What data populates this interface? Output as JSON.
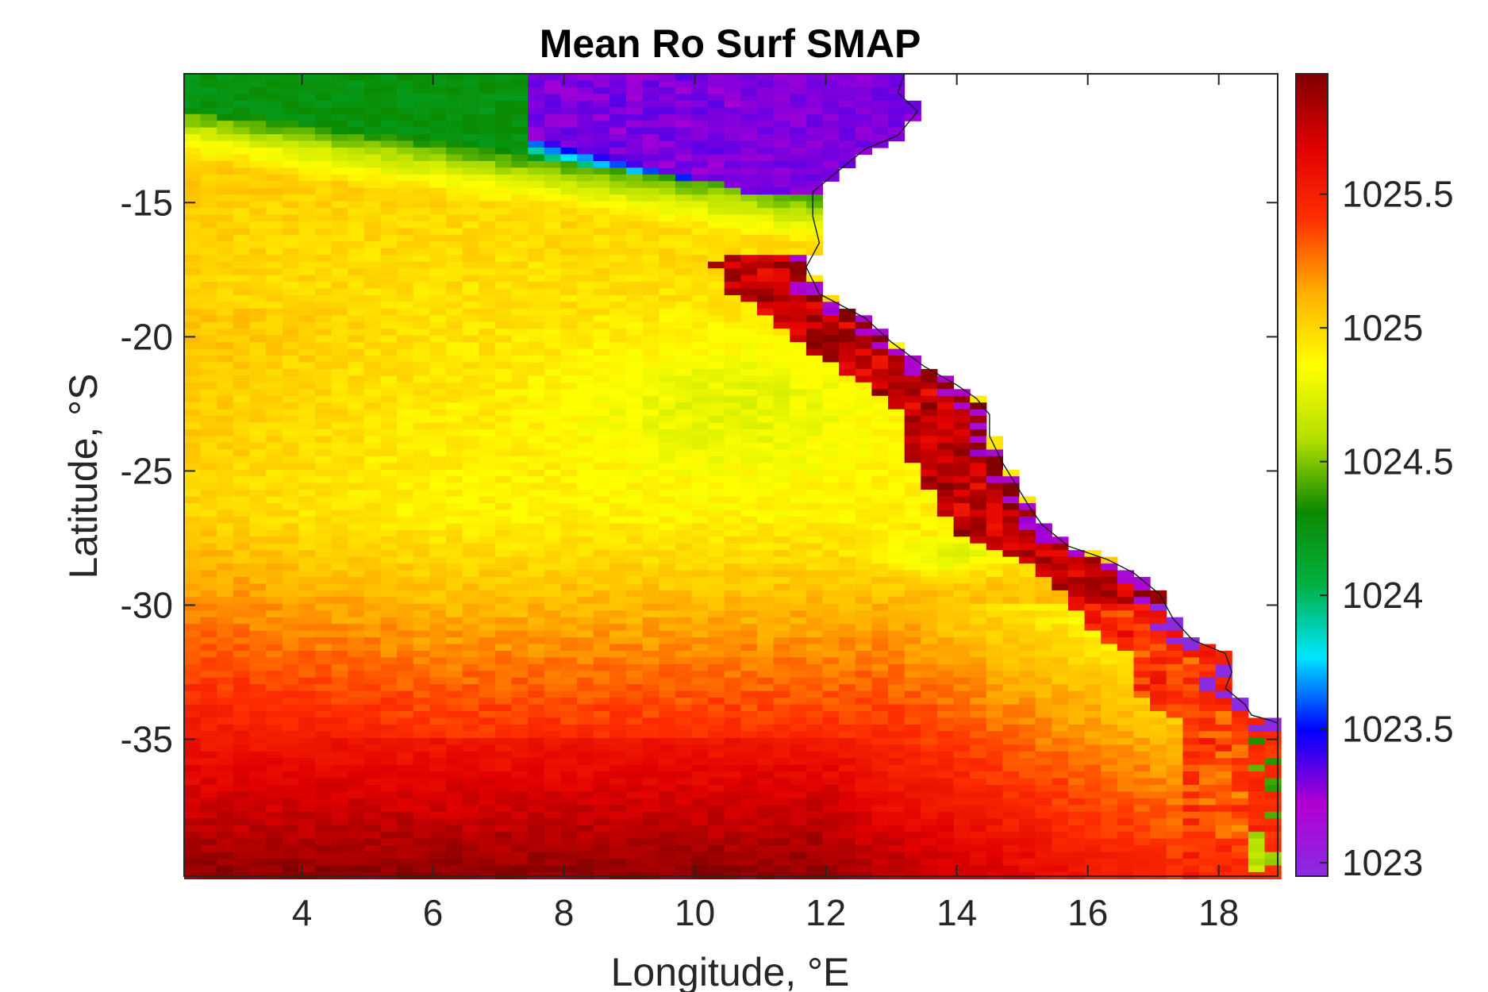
{
  "chart_data": {
    "type": "heatmap",
    "title": "Mean Ro Surf SMAP",
    "xlabel": "Longitude, °E",
    "ylabel": "Latitude, °S",
    "xlim": [
      2.2,
      18.9
    ],
    "ylim": [
      -40.1,
      -10.2
    ],
    "x_ticks": [
      4,
      6,
      8,
      10,
      12,
      14,
      16,
      18
    ],
    "x_tick_labels": [
      "4",
      "6",
      "8",
      "10",
      "12",
      "14",
      "16",
      "18"
    ],
    "y_ticks": [
      -15,
      -20,
      -25,
      -30,
      -35
    ],
    "y_tick_labels": [
      "-15",
      "-20",
      "-25",
      "-30",
      "-35"
    ],
    "colorbar": {
      "range": [
        1022.95,
        1025.95
      ],
      "ticks": [
        1023,
        1023.5,
        1024,
        1024.5,
        1025,
        1025.5
      ],
      "tick_labels": [
        "1023",
        "1023.5",
        "1024",
        "1024.5",
        "1025",
        "1025.5"
      ],
      "colormap": [
        "#8a2be2",
        "#b000d0",
        "#0000ff",
        "#00e5ff",
        "#00b040",
        "#0b8a00",
        "#b4e000",
        "#ffff00",
        "#ffb000",
        "#ff3000",
        "#e00000",
        "#800000"
      ]
    },
    "grid": false,
    "coastline": [
      [
        13.2,
        -10.2
      ],
      [
        13.1,
        -10.9
      ],
      [
        13.4,
        -11.6
      ],
      [
        13.1,
        -12.5
      ],
      [
        12.6,
        -13.0
      ],
      [
        12.2,
        -13.8
      ],
      [
        11.8,
        -14.6
      ],
      [
        11.8,
        -15.5
      ],
      [
        11.9,
        -16.5
      ],
      [
        11.7,
        -17.4
      ],
      [
        11.9,
        -18.4
      ],
      [
        12.6,
        -19.3
      ],
      [
        13.0,
        -20.2
      ],
      [
        13.5,
        -21.1
      ],
      [
        14.0,
        -21.8
      ],
      [
        14.3,
        -22.3
      ],
      [
        14.5,
        -22.9
      ],
      [
        14.5,
        -23.7
      ],
      [
        14.7,
        -24.7
      ],
      [
        14.9,
        -25.5
      ],
      [
        15.1,
        -26.3
      ],
      [
        15.3,
        -27.0
      ],
      [
        15.7,
        -27.8
      ],
      [
        16.3,
        -28.3
      ],
      [
        16.7,
        -28.8
      ],
      [
        17.1,
        -29.6
      ],
      [
        17.3,
        -30.5
      ],
      [
        17.6,
        -31.3
      ],
      [
        18.1,
        -31.8
      ],
      [
        18.2,
        -32.5
      ],
      [
        18.1,
        -33.1
      ],
      [
        18.4,
        -33.7
      ],
      [
        18.5,
        -34.1
      ],
      [
        18.8,
        -34.3
      ],
      [
        18.9,
        -34.4
      ]
    ]
  }
}
